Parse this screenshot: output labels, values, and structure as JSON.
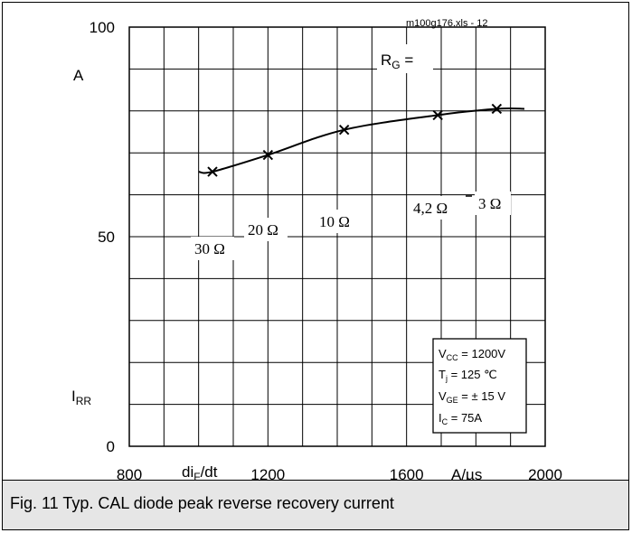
{
  "chart_data": {
    "type": "line",
    "source_label": "m100g176.xls - 12",
    "x_ticks": [
      "800",
      "1200",
      "1600",
      "2000"
    ],
    "y_ticks": [
      "0",
      "50",
      "100"
    ],
    "xlim": [
      800,
      2000
    ],
    "ylim": [
      0,
      100
    ],
    "grid": true,
    "ylabel_unit": "A",
    "ylabel_main": "I",
    "ylabel_sub": "RR",
    "xlabel_main": "di",
    "xlabel_sub": "F",
    "xlabel_rest": "/dt",
    "xlabel_unit": "A/µs",
    "rg_label_main": "R",
    "rg_label_sub": "G",
    "rg_label_rest": " =",
    "series": [
      {
        "x": [
          1000,
          1040,
          1200,
          1420,
          1690,
          1860,
          1940
        ],
        "y": [
          65.5,
          65.5,
          69.5,
          75.5,
          79,
          80.5,
          80.5
        ]
      }
    ],
    "markers": [
      {
        "x": 1040,
        "y": 65.5,
        "label": "30 Ω"
      },
      {
        "x": 1200,
        "y": 69.5,
        "label": "20 Ω"
      },
      {
        "x": 1420,
        "y": 75.5,
        "label": "10 Ω"
      },
      {
        "x": 1690,
        "y": 79,
        "label": "4,2 Ω"
      },
      {
        "x": 1860,
        "y": 80.5,
        "label": "3 Ω"
      }
    ],
    "conditions": {
      "vcc_main": "V",
      "vcc_sub": "CC",
      "vcc_rest": " = 1200V",
      "tj_main": "T",
      "tj_sub": "j",
      "tj_rest": " = 125 ℃",
      "vge_main": "V",
      "vge_sub": "GE",
      "vge_rest": " = ± 15 V",
      "ic_main": "I",
      "ic_sub": "C",
      "ic_rest": " =  75A"
    }
  },
  "caption": "Fig. 11 Typ. CAL diode peak reverse recovery current"
}
